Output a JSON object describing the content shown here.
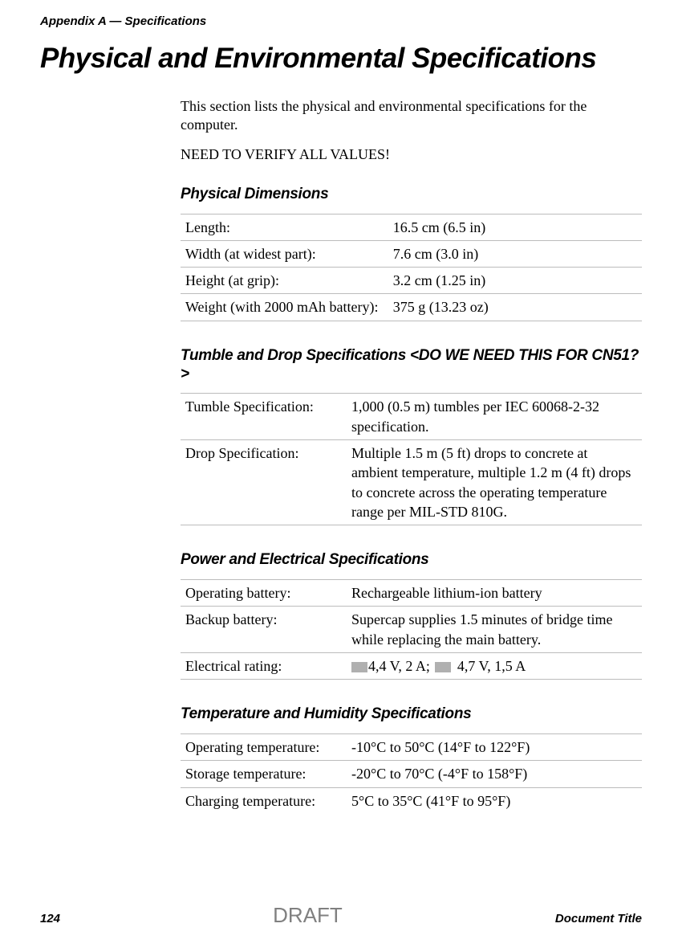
{
  "header": {
    "appendix": "Appendix A — Specifications"
  },
  "title": "Physical and Environmental Specifications",
  "intro": "This section lists the physical and environmental specifications for the computer.",
  "verify": "NEED TO VERIFY ALL VALUES!",
  "sections": {
    "dimensions": {
      "heading": "Physical Dimensions",
      "rows": [
        {
          "label": "Length:",
          "value": "16.5 cm (6.5 in)"
        },
        {
          "label": "Width (at widest part):",
          "value": "7.6 cm (3.0 in)"
        },
        {
          "label": "Height (at grip):",
          "value": "3.2 cm (1.25 in)"
        },
        {
          "label": "Weight (with 2000 mAh battery):",
          "value": "375 g (13.23 oz)"
        }
      ]
    },
    "tumble": {
      "heading": "Tumble and Drop Specifications <DO WE NEED THIS FOR CN51?>",
      "rows": [
        {
          "label": "Tumble Specification:",
          "value": "1,000 (0.5 m) tumbles per IEC 60068-2-32 specification."
        },
        {
          "label": "Drop Specification:",
          "value": "Multiple 1.5 m (5 ft) drops to concrete at ambient temperature, multiple 1.2 m (4 ft) drops to concrete across the operating temperature range per MIL-STD 810G."
        }
      ]
    },
    "power": {
      "heading": "Power and Electrical Specifications",
      "rows": [
        {
          "label": "Operating battery:",
          "value": "Rechargeable lithium-ion battery"
        },
        {
          "label": "Backup battery:",
          "value": "Supercap supplies 1.5 minutes of bridge time while replacing the main battery."
        }
      ],
      "electrical_label": "Electrical rating:",
      "electrical_v1": "4,4 V, 2 A; ",
      "electrical_v2": " 4,7 V, 1,5 A"
    },
    "temp": {
      "heading": "Temperature and Humidity Specifications",
      "rows": [
        {
          "label": "Operating temperature:",
          "value": "-10°C to 50°C (14°F to 122°F)"
        },
        {
          "label": "Storage temperature:",
          "value": "-20°C to 70°C (-4°F to 158°F)"
        },
        {
          "label": "Charging temperature:",
          "value": "5°C to 35°C (41°F to 95°F)"
        }
      ]
    }
  },
  "footer": {
    "page": "124",
    "draft": "DRAFT",
    "doc_title": "Document Title"
  }
}
